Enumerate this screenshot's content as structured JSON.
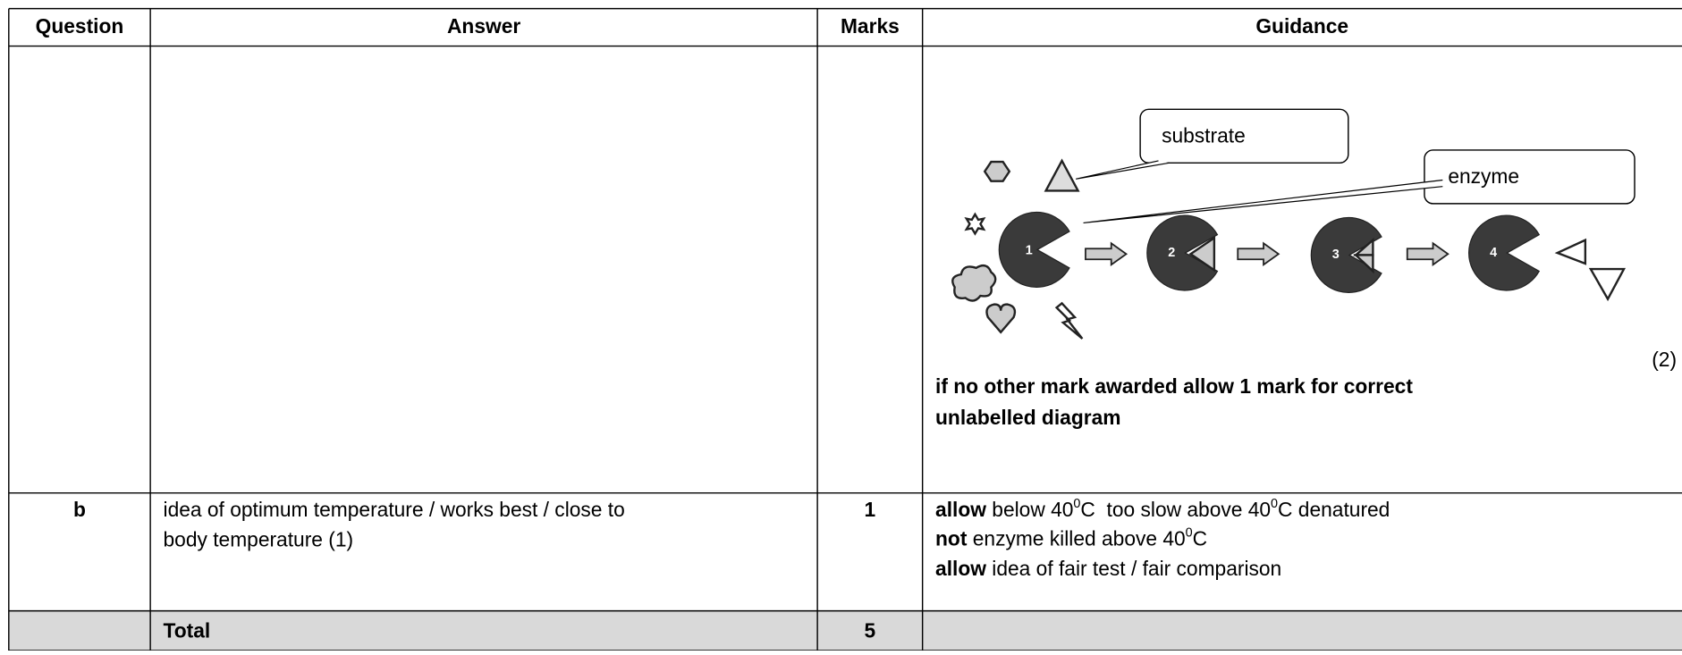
{
  "table": {
    "headers": [
      "Question",
      "Answer",
      "Marks",
      "Guidance"
    ],
    "rows": [
      {
        "guidance": {
          "diagram": {
            "labels": [
              "substrate",
              "enzyme"
            ],
            "steps": [
              "1",
              "2",
              "3",
              "4"
            ]
          },
          "note": [
            "if no other mark awarded allow 1 mark for correct",
            "unlabelled diagram"
          ],
          "marks_note": "(2)"
        }
      },
      {
        "question": "b",
        "answer": [
          "idea of optimum temperature / works best / close to",
          "body temperature (1)"
        ],
        "marks": 1,
        "guidance": [
          [
            "allow",
            " below 40",
            "0",
            "C  too slow above 40",
            "0",
            "C denatured"
          ],
          [
            "not",
            " enzyme killed above 40",
            "0",
            "C"
          ],
          [
            "allow",
            " idea of fair test / fair comparison"
          ]
        ]
      }
    ],
    "total": {
      "label": "Total",
      "marks": 5
    }
  }
}
